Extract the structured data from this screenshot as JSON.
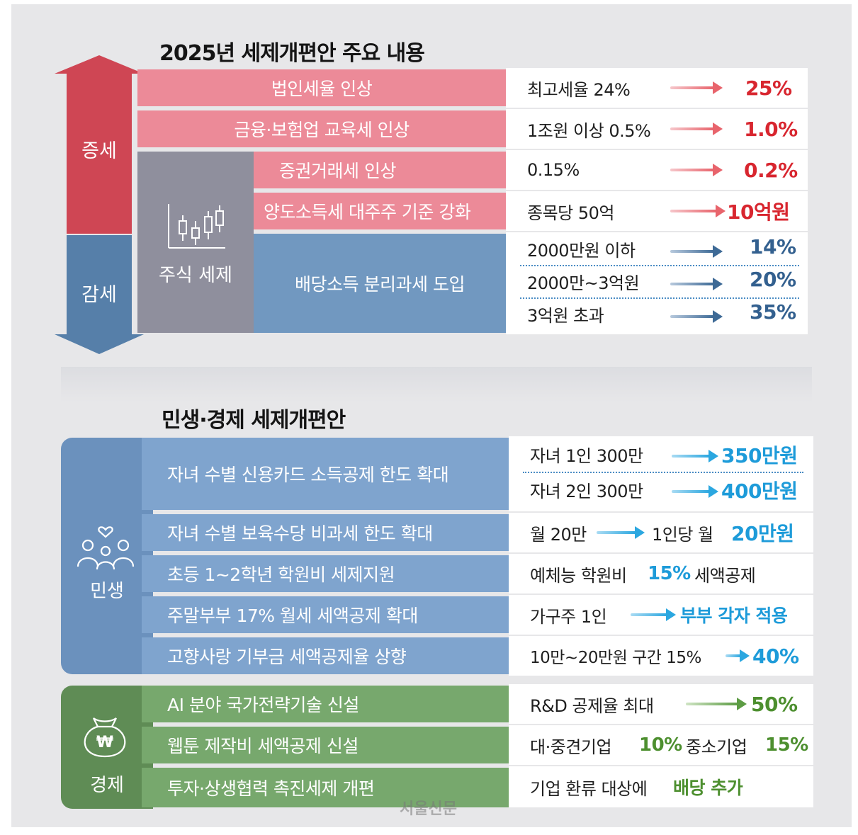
{
  "section1": {
    "title": "2025년 세제개편안 주요 내용",
    "increase_label": "증세",
    "decrease_label": "감세",
    "stock_label": "주식 세제",
    "rows": [
      {
        "item": "법인세율 인상",
        "from": "최고세율 24%",
        "to": "25%"
      },
      {
        "item": "금융·보험업 교육세 인상",
        "from": "1조원 이상 0.5%",
        "to": "1.0%"
      },
      {
        "item": "증권거래세 인상",
        "from": "0.15%",
        "to": "0.2%"
      },
      {
        "item": "양도소득세 대주주 기준 강화",
        "from": "종목당 50억",
        "to": "10억원"
      }
    ],
    "dividend": {
      "item": "배당소득 분리과세 도입",
      "tiers": [
        {
          "from": "2000만원 이하",
          "to": "14%"
        },
        {
          "from": "2000만~3억원",
          "to": "20%"
        },
        {
          "from": "3억원 초과",
          "to": "35%"
        }
      ]
    }
  },
  "section2": {
    "title": "민생·경제 세제개편안",
    "livelihood_label": "민생",
    "economy_label": "경제",
    "livelihood_rows": [
      {
        "item": "자녀 수별 신용카드 소득공제 한도 확대"
      },
      {
        "item": "자녀 수별 보육수당 비과세 한도 확대"
      },
      {
        "item": "초등 1~2학년 학원비 세제지원"
      },
      {
        "item": "주말부부 17% 월세 세액공제 확대"
      },
      {
        "item": "고향사랑 기부금 세액공제율 상향"
      }
    ],
    "card_tiers": [
      {
        "from": "자녀 1인 300만",
        "to": "350만원"
      },
      {
        "from": "자녀 2인 300만",
        "to": "400만원"
      }
    ],
    "childcare": {
      "from": "월 20만",
      "mid": "1인당 월",
      "to": "20만원"
    },
    "academy": {
      "pre": "예체능 학원비",
      "highlight": "15%",
      "post": "세액공제"
    },
    "weekend": {
      "from": "가구주 1인",
      "to": "부부 각자 적용"
    },
    "hometown": {
      "from": "10만~20만원 구간 15%",
      "to": "40%"
    },
    "economy_rows": [
      {
        "item": "AI 분야 국가전략기술 신설"
      },
      {
        "item": "웹툰 제작비 세액공제 신설"
      },
      {
        "item": "투자·상생협력 촉진세제 개편"
      }
    ],
    "ai": {
      "from": "R&D 공제율 최대",
      "to": "50%"
    },
    "webtoon": {
      "a": "대·중견기업",
      "a_val": "10%",
      "b": "중소기업",
      "b_val": "15%"
    },
    "invest": {
      "pre": "기업 환류 대상에",
      "highlight": "배당 추가"
    }
  },
  "watermark": "서울신문",
  "won_symbol": "₩",
  "colors": {
    "pink": "#ec8a98",
    "blue": "#7198c0",
    "green": "#77a86d",
    "red": "#d8262f",
    "cyan": "#1d9bd9"
  }
}
